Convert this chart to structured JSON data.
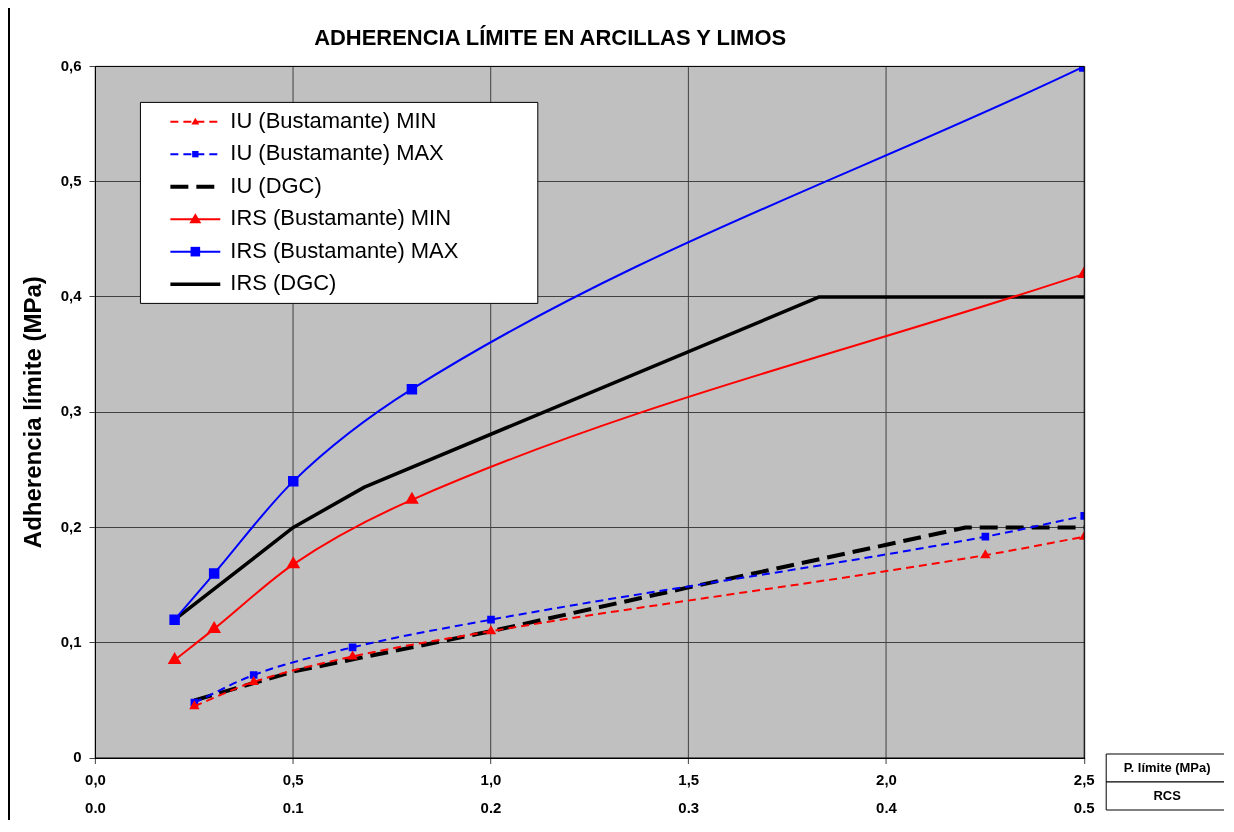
{
  "chart_data": {
    "type": "line",
    "title": "ADHERENCIA LÍMITE EN ARCILLAS Y LIMOS",
    "xlabel": "P. límite (MPa)",
    "ylabel": "Adherencia límite (MPa)",
    "x2label": "RCS",
    "xlim": [
      0,
      2.5
    ],
    "xticks": [
      {
        "value": 0,
        "label": "0,0"
      },
      {
        "value": 0.5,
        "label": "0,5"
      },
      {
        "value": 1,
        "label": "1,0"
      },
      {
        "value": 1.5,
        "label": "1,5"
      },
      {
        "value": 2,
        "label": "2,0"
      },
      {
        "value": 2.5,
        "label": "2,5"
      }
    ],
    "x2lim": [
      0,
      0.5
    ],
    "x2ticks": [
      {
        "value": 0,
        "label": "0.0"
      },
      0.1,
      0.2,
      0.3,
      0.4,
      0.5
    ],
    "ylim": [
      0,
      0.6
    ],
    "yticks": [
      0,
      {
        "value": 0.1,
        "label": "0,1"
      },
      {
        "value": 0.2,
        "label": "0,2"
      },
      {
        "value": 0.3,
        "label": "0,3"
      },
      {
        "value": 0.4,
        "label": "0,4"
      },
      {
        "value": 0.5,
        "label": "0,5"
      },
      {
        "value": 0.6,
        "label": "0,6"
      }
    ],
    "grid": true,
    "legend": "top left",
    "series": [
      {
        "name": "IU (Bustamante) MIN",
        "color": "#ff0000",
        "marker": "triangle",
        "line_style": "dashed",
        "x": [
          0.25,
          0.4,
          0.65,
          1.0,
          2.25,
          2.5
        ],
        "values": [
          0.045,
          0.066,
          0.088,
          0.11,
          0.176,
          0.192
        ]
      },
      {
        "name": "IU (Bustamante) MAX",
        "color": "#0000ff",
        "marker": "square",
        "line_style": "dashed",
        "x": [
          0.25,
          0.4,
          0.65,
          1.0,
          2.25,
          2.5
        ],
        "values": [
          0.048,
          0.072,
          0.096,
          0.12,
          0.192,
          0.21
        ]
      },
      {
        "name": "IU (DGC)",
        "color": "#000000",
        "marker": "none",
        "line_style": "dashed",
        "x": [
          0.25,
          0.5,
          1.0,
          1.5,
          2.0,
          2.2,
          2.5
        ],
        "values": [
          0.05,
          0.075,
          0.11,
          0.148,
          0.185,
          0.2,
          0.2
        ]
      },
      {
        "name": "IRS (Bustamante) MIN",
        "color": "#ff0000",
        "marker": "triangle",
        "line_style": "solid",
        "x": [
          0.2,
          0.3,
          0.5,
          0.8,
          2.5
        ],
        "values": [
          0.085,
          0.112,
          0.168,
          0.224,
          0.42
        ]
      },
      {
        "name": "IRS (Bustamante) MAX",
        "color": "#0000ff",
        "marker": "square",
        "line_style": "solid",
        "x": [
          0.2,
          0.3,
          0.5,
          0.8,
          2.5
        ],
        "values": [
          0.12,
          0.16,
          0.24,
          0.32,
          0.6
        ]
      },
      {
        "name": "IRS (DGC)",
        "color": "#000000",
        "marker": "none",
        "line_style": "solid",
        "x": [
          0.2,
          0.5,
          0.68,
          1.83,
          2.5
        ],
        "values": [
          0.12,
          0.2,
          0.235,
          0.4,
          0.4
        ]
      }
    ]
  }
}
